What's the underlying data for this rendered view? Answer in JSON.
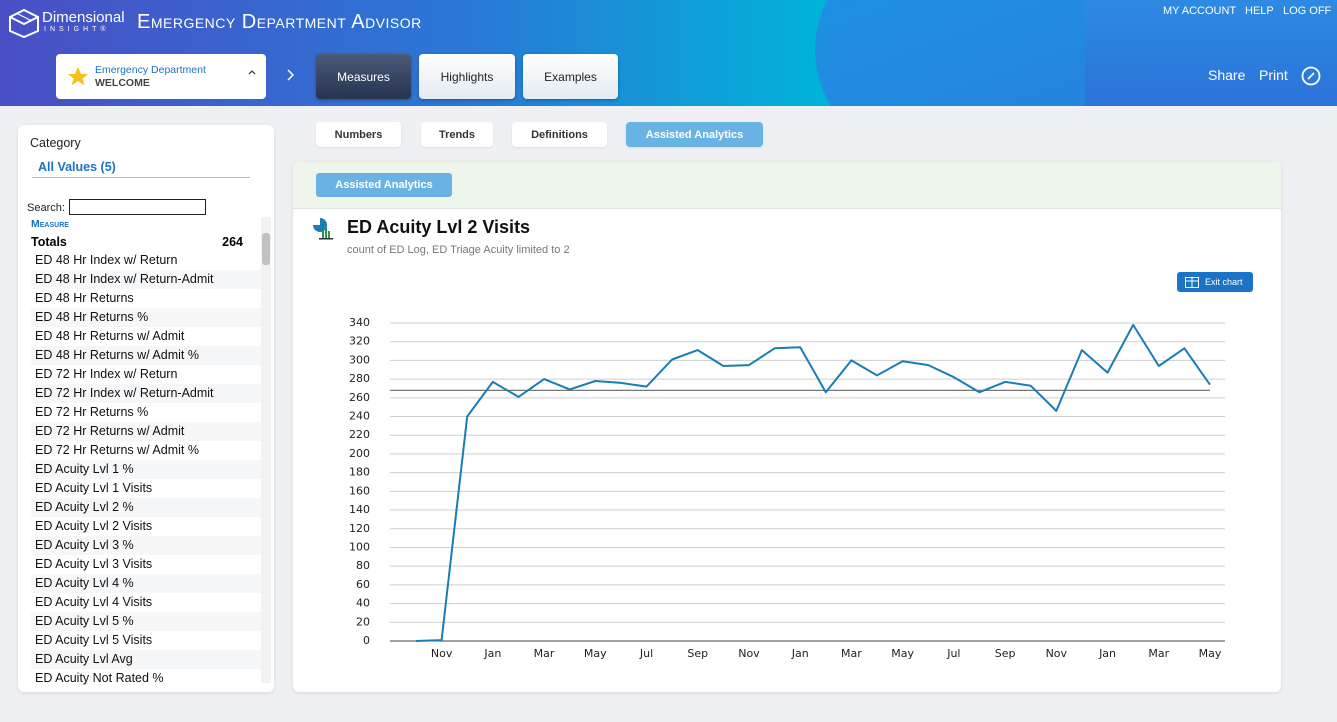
{
  "header": {
    "brand": "Dimensional",
    "brand_sub": "INSIGHT®",
    "app_title": "Emergency Department Advisor",
    "nav_links": [
      "MY ACCOUNT",
      "HELP",
      "LOG OFF"
    ],
    "selector": {
      "title": "Emergency Department",
      "subtitle": "WELCOME"
    },
    "tabs": [
      "Measures",
      "Highlights",
      "Examples"
    ],
    "actions": [
      "Share",
      "Print"
    ]
  },
  "sidebar": {
    "category_label": "Category",
    "all_values": "All Values (5)",
    "search_label": "Search:",
    "measure_header": "Measure",
    "totals": {
      "label": "Totals",
      "value": 264
    },
    "measures": [
      "ED 48 Hr Index w/ Return",
      "ED 48 Hr Index w/ Return-Admit",
      "ED 48 Hr Returns",
      "ED 48 Hr Returns %",
      "ED 48 Hr Returns w/ Admit",
      "ED 48 Hr Returns w/ Admit %",
      "ED 72 Hr Index w/ Return",
      "ED 72 Hr Index w/ Return-Admit",
      "ED 72 Hr Returns %",
      "ED 72 Hr Returns w/ Admit",
      "ED 72 Hr Returns w/ Admit %",
      "ED Acuity Lvl 1 %",
      "ED Acuity Lvl 1 Visits",
      "ED Acuity Lvl 2 %",
      "ED Acuity Lvl 2 Visits",
      "ED Acuity Lvl 3 %",
      "ED Acuity Lvl 3 Visits",
      "ED Acuity Lvl 4 %",
      "ED Acuity Lvl 4 Visits",
      "ED Acuity Lvl 5 %",
      "ED Acuity Lvl 5 Visits",
      "ED Acuity Lvl Avg",
      "ED Acuity Not Rated %"
    ]
  },
  "subtabs": [
    "Numbers",
    "Trends",
    "Definitions",
    "Assisted Analytics"
  ],
  "panel_button": "Assisted Analytics",
  "exit_chart": "Exit chart",
  "chart_data": {
    "type": "line",
    "title": "ED Acuity Lvl 2 Visits",
    "subtitle": "count of ED Log, ED Triage Acuity limited to 2",
    "categories": [
      null,
      "Nov",
      null,
      "Jan",
      null,
      "Mar",
      null,
      "May",
      null,
      "Jul",
      null,
      "Sep",
      null,
      "Nov",
      null,
      "Jan",
      null,
      "Mar",
      null,
      "May",
      null,
      "Jul",
      null,
      "Sep",
      null,
      "Nov",
      null,
      "Jan",
      null,
      "Mar",
      null,
      "May"
    ],
    "values": [
      0,
      1,
      240,
      277,
      261,
      280,
      269,
      278,
      276,
      272,
      301,
      311,
      294,
      295,
      313,
      314,
      266,
      300,
      284,
      299,
      295,
      282,
      266,
      277,
      273,
      246,
      311,
      287,
      338,
      294,
      313,
      274
    ],
    "color": "#1b7db3",
    "reference_line": 268,
    "ylim": [
      0,
      340
    ],
    "yticks": [
      0,
      20,
      40,
      60,
      80,
      100,
      120,
      140,
      160,
      180,
      200,
      220,
      240,
      260,
      280,
      300,
      320,
      340
    ],
    "grid": true
  }
}
